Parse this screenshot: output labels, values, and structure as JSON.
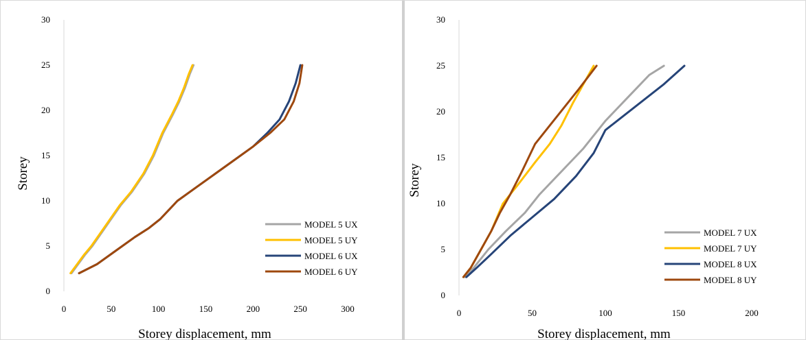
{
  "chart_data": [
    {
      "type": "line",
      "title": "",
      "xlabel": "Storey displacement, mm",
      "ylabel": "Storey",
      "xlim": [
        0,
        300
      ],
      "ylim": [
        0,
        30
      ],
      "xticks": [
        "0",
        "50",
        "100",
        "150",
        "200",
        "250",
        "300"
      ],
      "yticks": [
        "0",
        "5",
        "10",
        "15",
        "20",
        "25",
        "30"
      ],
      "grid": false,
      "legend_position": "bottom-right",
      "series": [
        {
          "name": "MODEL 5 UX",
          "color": "#a5a5a5",
          "x": [
            8,
            15,
            22,
            30,
            40,
            50,
            60,
            72,
            85,
            95,
            105,
            115,
            122,
            128,
            133,
            137
          ],
          "y": [
            2,
            3,
            4,
            5,
            6.5,
            8,
            9.5,
            11,
            13,
            15,
            17.5,
            19.5,
            21,
            22.5,
            24,
            25
          ]
        },
        {
          "name": "MODEL 5 UY",
          "color": "#ffc000",
          "x": [
            7,
            14,
            21,
            29,
            39,
            49,
            59,
            71,
            84,
            94,
            104,
            114,
            121,
            127,
            132,
            136
          ],
          "y": [
            2,
            3,
            4,
            5,
            6.5,
            8,
            9.5,
            11,
            13,
            15,
            17.5,
            19.5,
            21,
            22.5,
            24,
            25
          ]
        },
        {
          "name": "MODEL 6 UX",
          "color": "#264478",
          "x": [
            16,
            35,
            55,
            75,
            90,
            102,
            120,
            140,
            160,
            180,
            200,
            215,
            228,
            238,
            245,
            250
          ],
          "y": [
            2,
            3,
            4.5,
            6,
            7,
            8,
            10,
            11.5,
            13,
            14.5,
            16,
            17.5,
            19,
            21,
            23,
            25
          ]
        },
        {
          "name": "MODEL 6 UY",
          "color": "#9e480e",
          "x": [
            16,
            35,
            55,
            75,
            90,
            102,
            120,
            140,
            160,
            180,
            200,
            218,
            233,
            243,
            249,
            252
          ],
          "y": [
            2,
            3,
            4.5,
            6,
            7,
            8,
            10,
            11.5,
            13,
            14.5,
            16,
            17.5,
            19,
            21,
            23,
            25
          ]
        }
      ]
    },
    {
      "type": "line",
      "title": "",
      "xlabel": "Storey displacement, mm",
      "ylabel": "Storey",
      "xlim": [
        0,
        200
      ],
      "ylim": [
        0,
        30
      ],
      "xticks": [
        "0",
        "50",
        "100",
        "150",
        "200"
      ],
      "yticks": [
        "0",
        "5",
        "10",
        "15",
        "20",
        "25",
        "30"
      ],
      "grid": false,
      "legend_position": "bottom-right",
      "series": [
        {
          "name": "MODEL 7 UX",
          "color": "#a5a5a5",
          "x": [
            4,
            10,
            20,
            32,
            45,
            55,
            70,
            85,
            100,
            118,
            130,
            140
          ],
          "y": [
            2,
            3,
            5,
            7,
            9,
            11,
            13.5,
            16,
            19,
            22,
            24,
            25
          ]
        },
        {
          "name": "MODEL 7 UY",
          "color": "#ffc000",
          "x": [
            3,
            8,
            15,
            22,
            30,
            40,
            52,
            62,
            70,
            78,
            85,
            92
          ],
          "y": [
            2,
            3,
            5,
            7,
            10,
            12,
            14.5,
            16.5,
            18.5,
            21,
            23,
            25
          ]
        },
        {
          "name": "MODEL 8 UX",
          "color": "#264478",
          "x": [
            5,
            12,
            22,
            35,
            50,
            65,
            80,
            92,
            100,
            108,
            120,
            140,
            154
          ],
          "y": [
            2,
            3,
            4.5,
            6.5,
            8.5,
            10.5,
            13,
            15.5,
            18,
            19,
            20.5,
            23,
            25
          ]
        },
        {
          "name": "MODEL 8 UY",
          "color": "#9e480e",
          "x": [
            3,
            8,
            15,
            22,
            28,
            35,
            43,
            52,
            62,
            72,
            82,
            94
          ],
          "y": [
            2,
            3,
            5,
            7,
            9,
            11,
            13.5,
            16.5,
            18.5,
            20.5,
            22.5,
            25
          ]
        }
      ]
    }
  ]
}
